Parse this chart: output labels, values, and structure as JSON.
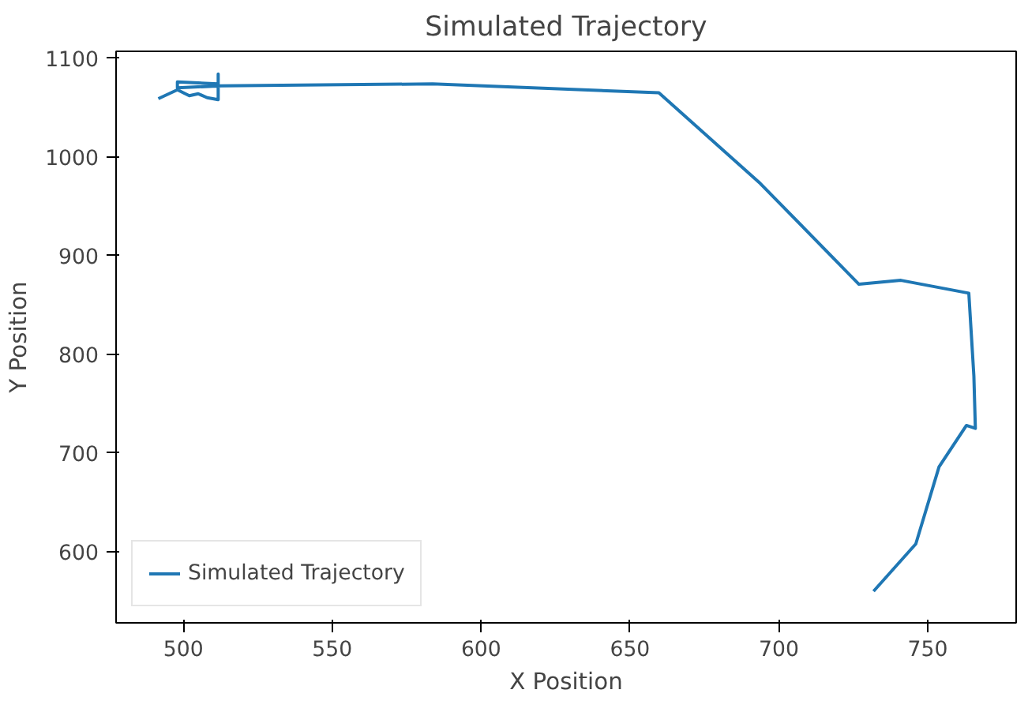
{
  "chart_data": {
    "type": "line",
    "title": "Simulated Trajectory",
    "xlabel": "X Position",
    "ylabel": "Y Position",
    "xlim": [
      477.4,
      779.7
    ],
    "ylim": [
      528,
      1107
    ],
    "xticks": [
      500,
      550,
      600,
      650,
      700,
      750
    ],
    "yticks": [
      600,
      700,
      800,
      900,
      1000,
      1100
    ],
    "grid": false,
    "legend": "bottom left",
    "series": [
      {
        "name": "Simulated Trajectory",
        "color": "#1f77b4",
        "x": [
          491.6,
          498,
          502,
          505,
          508,
          511.7,
          511.7,
          511.7,
          498,
          498,
          512.7,
          583.7,
          659.7,
          693.8,
          726.9,
          741,
          763.8,
          765.5,
          766,
          763,
          753.8,
          746,
          731.8
        ],
        "values": [
          1059,
          1068,
          1062,
          1064,
          1060,
          1058,
          1084,
          1074,
          1076,
          1070,
          1072,
          1074,
          1065,
          973,
          871,
          875,
          862,
          778,
          725,
          728,
          686,
          608,
          560
        ]
      }
    ]
  }
}
